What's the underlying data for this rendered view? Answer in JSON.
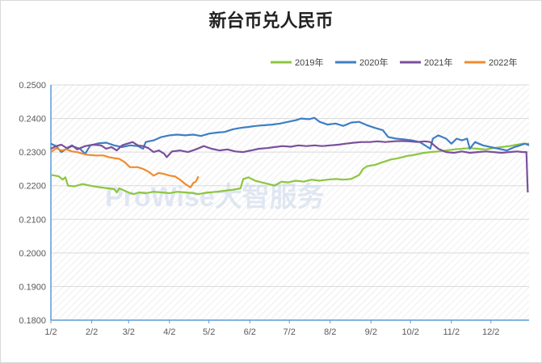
{
  "chart_data": {
    "type": "line",
    "title": "新台币兑人民币",
    "ylim": [
      0.18,
      0.25
    ],
    "yticks": [
      "0.2500",
      "0.2400",
      "0.2300",
      "0.2200",
      "0.2100",
      "0.2000",
      "0.1900",
      "0.1800"
    ],
    "xticks": [
      "1/2",
      "2/2",
      "3/2",
      "4/2",
      "5/2",
      "6/2",
      "7/2",
      "8/2",
      "9/2",
      "10/2",
      "11/2",
      "12/2"
    ],
    "grid": true,
    "legend_position": "top-right",
    "watermark": "ProWise大智服务",
    "series": [
      {
        "name": "2019年",
        "color": "#8cc63f",
        "points": [
          [
            0,
            0.2232
          ],
          [
            3,
            0.223
          ],
          [
            6,
            0.2228
          ],
          [
            9,
            0.2218
          ],
          [
            11,
            0.2225
          ],
          [
            13,
            0.22
          ],
          [
            18,
            0.2198
          ],
          [
            24,
            0.2205
          ],
          [
            30,
            0.22
          ],
          [
            36,
            0.2196
          ],
          [
            42,
            0.2193
          ],
          [
            48,
            0.219
          ],
          [
            50,
            0.218
          ],
          [
            52,
            0.2192
          ],
          [
            56,
            0.2185
          ],
          [
            60,
            0.2178
          ],
          [
            63,
            0.2175
          ],
          [
            67,
            0.218
          ],
          [
            72,
            0.2178
          ],
          [
            78,
            0.2182
          ],
          [
            84,
            0.218
          ],
          [
            90,
            0.2178
          ],
          [
            96,
            0.2182
          ],
          [
            102,
            0.218
          ],
          [
            108,
            0.2178
          ],
          [
            112,
            0.2175
          ],
          [
            116,
            0.2178
          ],
          [
            120,
            0.218
          ],
          [
            126,
            0.2182
          ],
          [
            132,
            0.2185
          ],
          [
            138,
            0.2188
          ],
          [
            144,
            0.2192
          ],
          [
            146,
            0.222
          ],
          [
            150,
            0.2225
          ],
          [
            155,
            0.2215
          ],
          [
            160,
            0.221
          ],
          [
            165,
            0.2205
          ],
          [
            170,
            0.22
          ],
          [
            175,
            0.2212
          ],
          [
            180,
            0.221
          ],
          [
            186,
            0.2215
          ],
          [
            192,
            0.2212
          ],
          [
            198,
            0.2218
          ],
          [
            204,
            0.2215
          ],
          [
            210,
            0.2218
          ],
          [
            216,
            0.222
          ],
          [
            222,
            0.2218
          ],
          [
            228,
            0.222
          ],
          [
            234,
            0.2232
          ],
          [
            237,
            0.225
          ],
          [
            240,
            0.2258
          ],
          [
            246,
            0.2262
          ],
          [
            252,
            0.227
          ],
          [
            258,
            0.2278
          ],
          [
            264,
            0.2282
          ],
          [
            270,
            0.2288
          ],
          [
            276,
            0.2292
          ],
          [
            282,
            0.2297
          ],
          [
            288,
            0.23
          ],
          [
            294,
            0.2302
          ],
          [
            300,
            0.2305
          ],
          [
            306,
            0.2308
          ],
          [
            312,
            0.231
          ],
          [
            318,
            0.2312
          ],
          [
            324,
            0.231
          ],
          [
            330,
            0.2308
          ],
          [
            336,
            0.2312
          ],
          [
            342,
            0.2315
          ],
          [
            348,
            0.2318
          ],
          [
            354,
            0.2322
          ],
          [
            358,
            0.2325
          ],
          [
            363,
            0.2325
          ]
        ]
      },
      {
        "name": "2020年",
        "color": "#3f7ec3",
        "points": [
          [
            0,
            0.2325
          ],
          [
            4,
            0.2318
          ],
          [
            8,
            0.23
          ],
          [
            12,
            0.231
          ],
          [
            16,
            0.2318
          ],
          [
            22,
            0.231
          ],
          [
            26,
            0.2295
          ],
          [
            30,
            0.232
          ],
          [
            36,
            0.2326
          ],
          [
            42,
            0.2328
          ],
          [
            48,
            0.232
          ],
          [
            54,
            0.2315
          ],
          [
            60,
            0.232
          ],
          [
            66,
            0.2318
          ],
          [
            70,
            0.231
          ],
          [
            72,
            0.233
          ],
          [
            78,
            0.2335
          ],
          [
            84,
            0.2345
          ],
          [
            90,
            0.235
          ],
          [
            96,
            0.2352
          ],
          [
            102,
            0.235
          ],
          [
            108,
            0.2352
          ],
          [
            114,
            0.2348
          ],
          [
            120,
            0.2355
          ],
          [
            126,
            0.2358
          ],
          [
            132,
            0.236
          ],
          [
            138,
            0.2368
          ],
          [
            144,
            0.2372
          ],
          [
            150,
            0.2375
          ],
          [
            156,
            0.2378
          ],
          [
            162,
            0.238
          ],
          [
            168,
            0.2382
          ],
          [
            174,
            0.2385
          ],
          [
            180,
            0.239
          ],
          [
            186,
            0.2395
          ],
          [
            190,
            0.24
          ],
          [
            196,
            0.2398
          ],
          [
            200,
            0.2402
          ],
          [
            204,
            0.239
          ],
          [
            210,
            0.2382
          ],
          [
            216,
            0.2385
          ],
          [
            222,
            0.2378
          ],
          [
            228,
            0.2388
          ],
          [
            234,
            0.239
          ],
          [
            240,
            0.238
          ],
          [
            246,
            0.2372
          ],
          [
            252,
            0.2365
          ],
          [
            256,
            0.2345
          ],
          [
            262,
            0.234
          ],
          [
            268,
            0.2338
          ],
          [
            274,
            0.2335
          ],
          [
            280,
            0.233
          ],
          [
            284,
            0.232
          ],
          [
            288,
            0.231
          ],
          [
            290,
            0.234
          ],
          [
            294,
            0.235
          ],
          [
            300,
            0.234
          ],
          [
            304,
            0.2325
          ],
          [
            308,
            0.234
          ],
          [
            312,
            0.2335
          ],
          [
            316,
            0.234
          ],
          [
            318,
            0.231
          ],
          [
            322,
            0.233
          ],
          [
            328,
            0.232
          ],
          [
            334,
            0.2315
          ],
          [
            340,
            0.231
          ],
          [
            346,
            0.2305
          ],
          [
            352,
            0.2315
          ],
          [
            356,
            0.232
          ],
          [
            360,
            0.2325
          ],
          [
            363,
            0.232
          ]
        ]
      },
      {
        "name": "2021年",
        "color": "#7a4f9c",
        "points": [
          [
            0,
            0.231
          ],
          [
            4,
            0.2318
          ],
          [
            8,
            0.2322
          ],
          [
            12,
            0.2312
          ],
          [
            16,
            0.232
          ],
          [
            20,
            0.2308
          ],
          [
            26,
            0.2318
          ],
          [
            32,
            0.2322
          ],
          [
            38,
            0.232
          ],
          [
            42,
            0.231
          ],
          [
            46,
            0.2315
          ],
          [
            50,
            0.2305
          ],
          [
            54,
            0.232
          ],
          [
            58,
            0.2325
          ],
          [
            62,
            0.233
          ],
          [
            66,
            0.232
          ],
          [
            70,
            0.2318
          ],
          [
            74,
            0.2312
          ],
          [
            78,
            0.23
          ],
          [
            82,
            0.2305
          ],
          [
            86,
            0.2295
          ],
          [
            88,
            0.2285
          ],
          [
            92,
            0.2302
          ],
          [
            98,
            0.2305
          ],
          [
            104,
            0.23
          ],
          [
            110,
            0.2308
          ],
          [
            116,
            0.2318
          ],
          [
            122,
            0.231
          ],
          [
            128,
            0.2305
          ],
          [
            134,
            0.2308
          ],
          [
            140,
            0.2302
          ],
          [
            146,
            0.23
          ],
          [
            152,
            0.2305
          ],
          [
            158,
            0.231
          ],
          [
            164,
            0.2312
          ],
          [
            170,
            0.2315
          ],
          [
            176,
            0.2318
          ],
          [
            182,
            0.2316
          ],
          [
            188,
            0.232
          ],
          [
            194,
            0.2318
          ],
          [
            200,
            0.232
          ],
          [
            206,
            0.2318
          ],
          [
            212,
            0.232
          ],
          [
            218,
            0.2322
          ],
          [
            224,
            0.2325
          ],
          [
            230,
            0.2328
          ],
          [
            236,
            0.233
          ],
          [
            242,
            0.233
          ],
          [
            248,
            0.2332
          ],
          [
            254,
            0.233
          ],
          [
            260,
            0.2332
          ],
          [
            266,
            0.2333
          ],
          [
            272,
            0.2332
          ],
          [
            278,
            0.233
          ],
          [
            284,
            0.2332
          ],
          [
            288,
            0.233
          ],
          [
            294,
            0.231
          ],
          [
            300,
            0.23
          ],
          [
            306,
            0.2298
          ],
          [
            312,
            0.2302
          ],
          [
            318,
            0.2298
          ],
          [
            324,
            0.23
          ],
          [
            330,
            0.2302
          ],
          [
            336,
            0.23
          ],
          [
            342,
            0.2298
          ],
          [
            348,
            0.23
          ],
          [
            354,
            0.2302
          ],
          [
            358,
            0.23
          ],
          [
            361,
            0.23
          ],
          [
            362,
            0.218
          ]
        ]
      },
      {
        "name": "2022年",
        "color": "#f08c2e",
        "points": [
          [
            0,
            0.23
          ],
          [
            4,
            0.2312
          ],
          [
            8,
            0.2305
          ],
          [
            12,
            0.2308
          ],
          [
            16,
            0.2302
          ],
          [
            20,
            0.23
          ],
          [
            24,
            0.2295
          ],
          [
            28,
            0.2292
          ],
          [
            34,
            0.229
          ],
          [
            40,
            0.229
          ],
          [
            44,
            0.2285
          ],
          [
            48,
            0.2282
          ],
          [
            52,
            0.228
          ],
          [
            56,
            0.227
          ],
          [
            60,
            0.2255
          ],
          [
            66,
            0.2255
          ],
          [
            70,
            0.225
          ],
          [
            74,
            0.2242
          ],
          [
            78,
            0.223
          ],
          [
            82,
            0.2238
          ],
          [
            86,
            0.2235
          ],
          [
            90,
            0.223
          ],
          [
            94,
            0.2228
          ],
          [
            98,
            0.2218
          ],
          [
            102,
            0.2205
          ],
          [
            106,
            0.2195
          ],
          [
            108,
            0.2208
          ],
          [
            110,
            0.2212
          ],
          [
            112,
            0.2228
          ]
        ]
      }
    ]
  }
}
